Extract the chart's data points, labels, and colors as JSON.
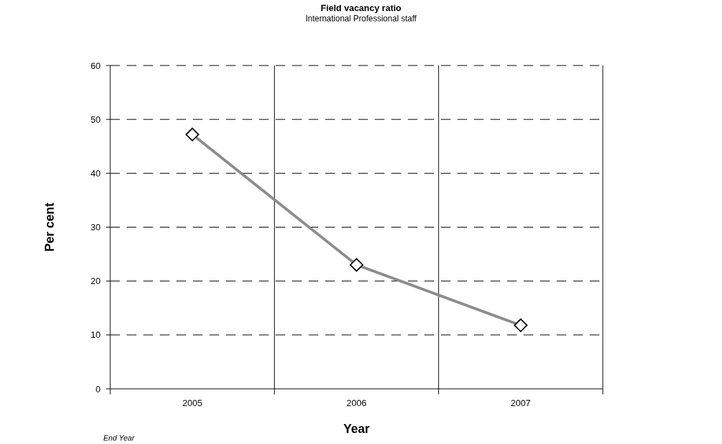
{
  "chart_data": {
    "type": "line",
    "title": "Field vacancy ratio",
    "subtitle": "International Professional staff",
    "xlabel": "Year",
    "ylabel": "Per cent",
    "categories": [
      "2005",
      "2006",
      "2007"
    ],
    "series": [
      {
        "color": "#8c8c8c",
        "values": [
          47.2,
          23,
          11.8
        ]
      }
    ],
    "ylim": [
      0,
      60
    ],
    "yticks": [
      0,
      10,
      20,
      30,
      40,
      50,
      60
    ],
    "grid": true,
    "marker": "diamond",
    "line_style": "solid",
    "annotations": [
      "End Year"
    ]
  }
}
